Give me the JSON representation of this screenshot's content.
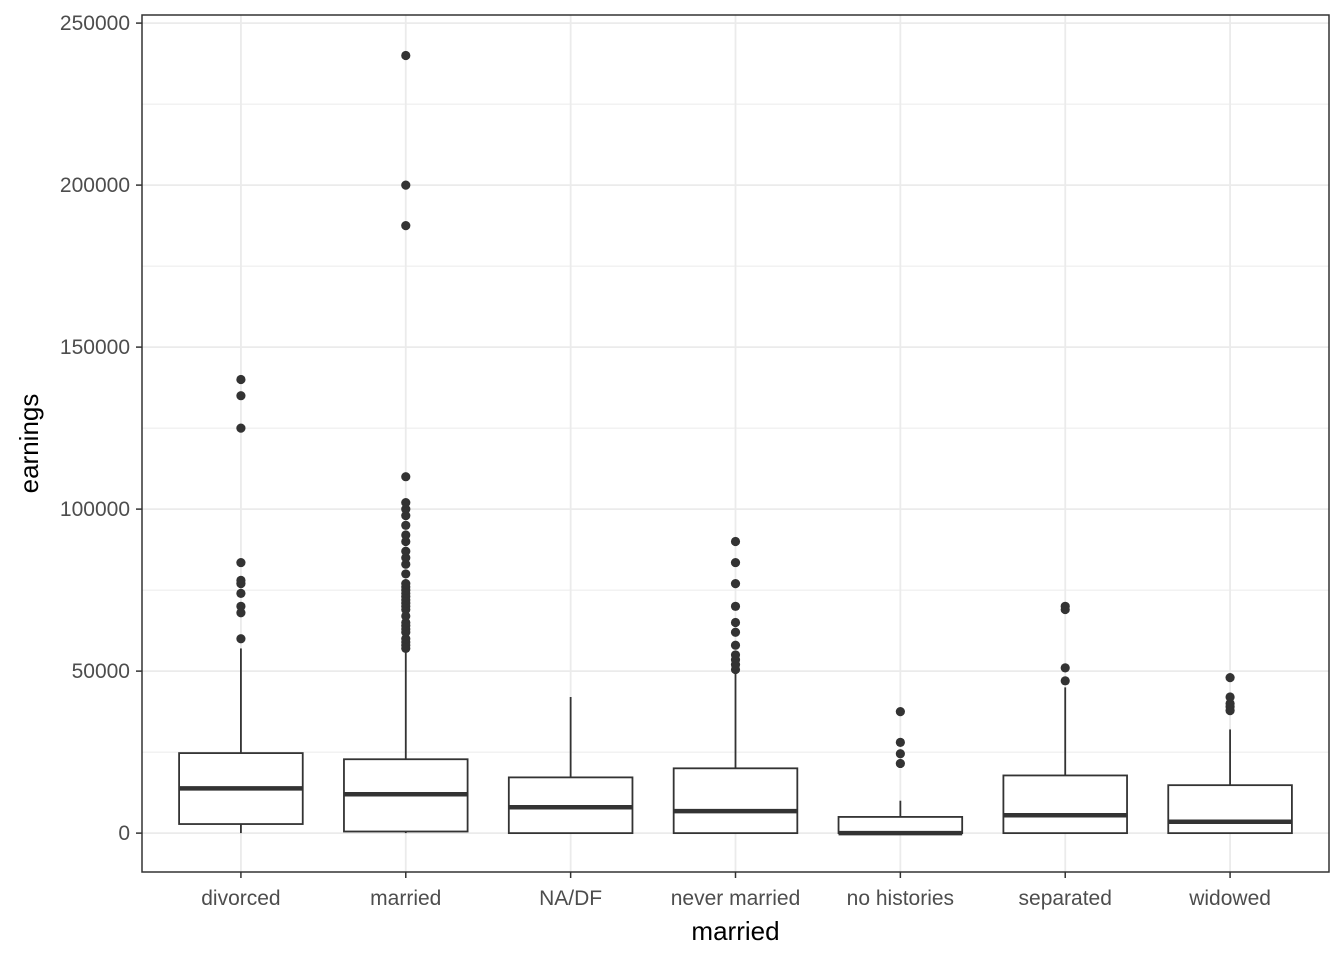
{
  "chart_data": {
    "type": "boxplot",
    "title": "",
    "xlabel": "married",
    "ylabel": "earnings",
    "ylim": [
      -12000,
      252500
    ],
    "yticks": [
      0,
      50000,
      100000,
      150000,
      200000,
      250000
    ],
    "ytick_labels": [
      "0",
      "50000",
      "100000",
      "150000",
      "200000",
      "250000"
    ],
    "grid": true,
    "legend": "none",
    "colors": {
      "box_edge": "#333333",
      "median": "#333333",
      "outlier": "#333333",
      "grid": "#ebebeb",
      "panel_border": "#333333"
    },
    "categories": [
      "divorced",
      "married",
      "NA/DF",
      "never married",
      "no histories",
      "separated",
      "widowed"
    ],
    "boxes": [
      {
        "category": "divorced",
        "whisker_low": 0,
        "q1": 2800,
        "median": 13800,
        "q3": 24700,
        "whisker_high": 57000,
        "outliers": [
          60000,
          68000,
          70000,
          74000,
          77000,
          78000,
          83500,
          125000,
          135000,
          140000
        ]
      },
      {
        "category": "married",
        "whisker_low": 0,
        "q1": 500,
        "median": 12000,
        "q3": 22800,
        "whisker_high": 56000,
        "outliers": [
          57000,
          58000,
          59000,
          60000,
          62000,
          63000,
          64000,
          65000,
          67000,
          69000,
          70000,
          71000,
          72000,
          73000,
          74000,
          75000,
          76000,
          77000,
          80000,
          83000,
          85000,
          87000,
          90000,
          92000,
          95000,
          98000,
          100000,
          102000,
          110000,
          187500,
          200000,
          240000
        ]
      },
      {
        "category": "NA/DF",
        "whisker_low": 0,
        "q1": 0,
        "median": 8000,
        "q3": 17200,
        "whisker_high": 42000,
        "outliers": []
      },
      {
        "category": "never married",
        "whisker_low": 0,
        "q1": 0,
        "median": 6800,
        "q3": 20000,
        "whisker_high": 50000,
        "outliers": [
          50500,
          52000,
          53500,
          55000,
          58000,
          62000,
          65000,
          70000,
          77000,
          83500,
          90000
        ]
      },
      {
        "category": "no histories",
        "whisker_low": 0,
        "q1": 0,
        "median": 0,
        "q3": 5000,
        "whisker_high": 10000,
        "outliers": [
          21500,
          24500,
          28000,
          37500
        ]
      },
      {
        "category": "separated",
        "whisker_low": 0,
        "q1": 0,
        "median": 5500,
        "q3": 17800,
        "whisker_high": 45000,
        "outliers": [
          47000,
          51000,
          69000,
          70000
        ]
      },
      {
        "category": "widowed",
        "whisker_low": 0,
        "q1": 0,
        "median": 3500,
        "q3": 14800,
        "whisker_high": 32000,
        "outliers": [
          37800,
          39000,
          40000,
          42000,
          48000
        ]
      }
    ]
  }
}
